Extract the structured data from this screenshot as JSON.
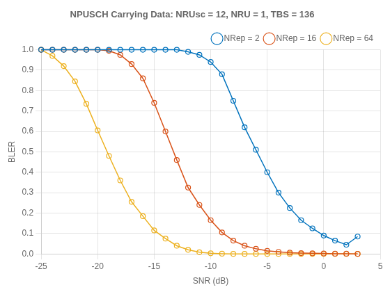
{
  "chart_data": {
    "type": "line",
    "title": "NPUSCH Carrying Data: NRUsc = 12, NRU = 1, TBS = 136",
    "xlabel": "SNR (dB)",
    "ylabel": "BLER",
    "x": [
      -25,
      -24,
      -23,
      -22,
      -21,
      -20,
      -19,
      -18,
      -17,
      -16,
      -15,
      -14,
      -13,
      -12,
      -11,
      -10,
      -9,
      -8,
      -7,
      -6,
      -5,
      -4,
      -3,
      -2,
      -1,
      0,
      1,
      2,
      3
    ],
    "series": [
      {
        "name": "NRep = 2",
        "color": "#0072BD",
        "marker": "circle",
        "values": [
          1.0,
          1.0,
          1.0,
          1.0,
          1.0,
          1.0,
          1.0,
          1.0,
          1.0,
          1.0,
          1.0,
          1.0,
          1.0,
          0.99,
          0.975,
          0.94,
          0.88,
          0.75,
          0.62,
          0.51,
          0.4,
          0.3,
          0.225,
          0.165,
          0.125,
          0.09,
          0.065,
          0.045,
          0.085
        ]
      },
      {
        "name": "NRep = 16",
        "color": "#D95319",
        "marker": "circle",
        "values": [
          1.0,
          1.0,
          1.0,
          1.0,
          1.0,
          1.0,
          0.995,
          0.975,
          0.93,
          0.86,
          0.74,
          0.6,
          0.46,
          0.325,
          0.24,
          0.165,
          0.105,
          0.065,
          0.04,
          0.025,
          0.015,
          0.01,
          0.006,
          0.004,
          0.003,
          0.002,
          0.001,
          0.001,
          0.0
        ]
      },
      {
        "name": "NRep = 64",
        "color": "#EDB120",
        "marker": "circle",
        "values": [
          1.0,
          0.97,
          0.92,
          0.845,
          0.735,
          0.605,
          0.48,
          0.36,
          0.255,
          0.185,
          0.115,
          0.075,
          0.04,
          0.02,
          0.008,
          0.003,
          0.001,
          0.0,
          0.0,
          0.0,
          0.0,
          0.0,
          0.0,
          0.0,
          0.0,
          0.0,
          0.0,
          0.0,
          0.0
        ]
      }
    ],
    "xlim": [
      -25,
      5
    ],
    "xticks": [
      -25,
      -20,
      -15,
      -10,
      -5,
      0,
      5
    ],
    "ylim": [
      0,
      1
    ],
    "yticks": [
      {
        "value": 0,
        "label": "0.0"
      },
      0.1,
      0.2,
      0.3,
      0.4,
      0.5,
      0.6,
      0.7,
      0.8,
      0.9,
      {
        "value": 1.0,
        "label": "1.0"
      }
    ],
    "grid": true,
    "legend": "upper right"
  }
}
